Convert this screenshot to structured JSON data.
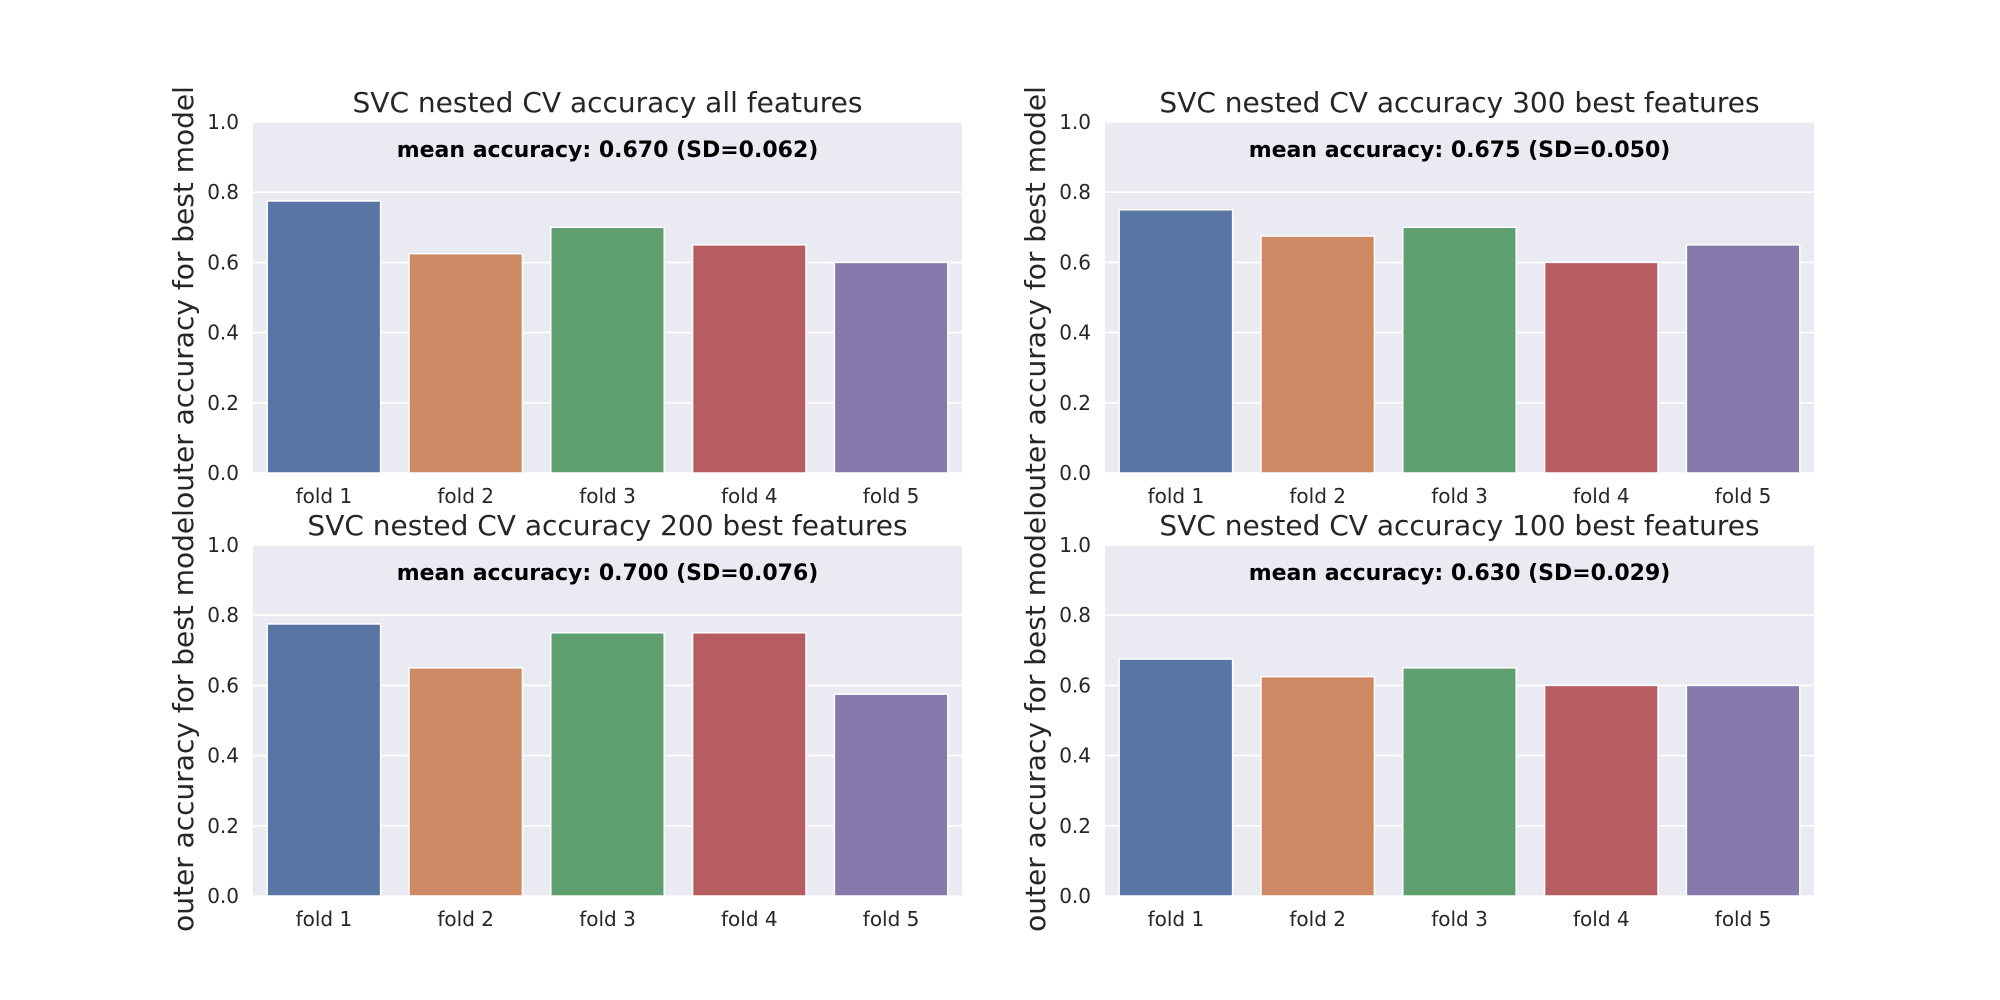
{
  "colors": {
    "background": "#ffffff",
    "panel": "#EAEAF2",
    "grid": "#ffffff",
    "text": "#262626",
    "bars": [
      "#5875A4",
      "#CC8963",
      "#5F9E6E",
      "#B55D60",
      "#857AAB"
    ]
  },
  "chart_data": [
    {
      "type": "bar",
      "title": "SVC nested CV accuracy all features",
      "annotation": "mean accuracy: 0.670 (SD=0.062)",
      "xlabel": "",
      "ylabel": "outer accuracy for best model",
      "categories": [
        "fold 1",
        "fold 2",
        "fold 3",
        "fold 4",
        "fold 5"
      ],
      "values": [
        0.775,
        0.625,
        0.7,
        0.65,
        0.6
      ],
      "ylim": [
        0,
        1
      ],
      "yticks": [
        "0.0",
        "0.2",
        "0.4",
        "0.6",
        "0.8",
        "1.0"
      ],
      "grid": true
    },
    {
      "type": "bar",
      "title": "SVC nested CV accuracy 300 best features",
      "annotation": "mean accuracy: 0.675 (SD=0.050)",
      "xlabel": "",
      "ylabel": "outer accuracy for best model",
      "categories": [
        "fold 1",
        "fold 2",
        "fold 3",
        "fold 4",
        "fold 5"
      ],
      "values": [
        0.75,
        0.675,
        0.7,
        0.6,
        0.65
      ],
      "ylim": [
        0,
        1
      ],
      "yticks": [
        "0.0",
        "0.2",
        "0.4",
        "0.6",
        "0.8",
        "1.0"
      ],
      "grid": true
    },
    {
      "type": "bar",
      "title": "SVC nested CV accuracy 200 best features",
      "annotation": "mean accuracy: 0.700 (SD=0.076)",
      "xlabel": "",
      "ylabel": "outer accuracy for best model",
      "categories": [
        "fold 1",
        "fold 2",
        "fold 3",
        "fold 4",
        "fold 5"
      ],
      "values": [
        0.775,
        0.65,
        0.75,
        0.75,
        0.575
      ],
      "ylim": [
        0,
        1
      ],
      "yticks": [
        "0.0",
        "0.2",
        "0.4",
        "0.6",
        "0.8",
        "1.0"
      ],
      "grid": true
    },
    {
      "type": "bar",
      "title": "SVC nested CV accuracy 100 best features",
      "annotation": "mean accuracy: 0.630 (SD=0.029)",
      "xlabel": "",
      "ylabel": "outer accuracy for best model",
      "categories": [
        "fold 1",
        "fold 2",
        "fold 3",
        "fold 4",
        "fold 5"
      ],
      "values": [
        0.675,
        0.625,
        0.65,
        0.6,
        0.6
      ],
      "ylim": [
        0,
        1
      ],
      "yticks": [
        "0.0",
        "0.2",
        "0.4",
        "0.6",
        "0.8",
        "1.0"
      ],
      "grid": true
    }
  ]
}
